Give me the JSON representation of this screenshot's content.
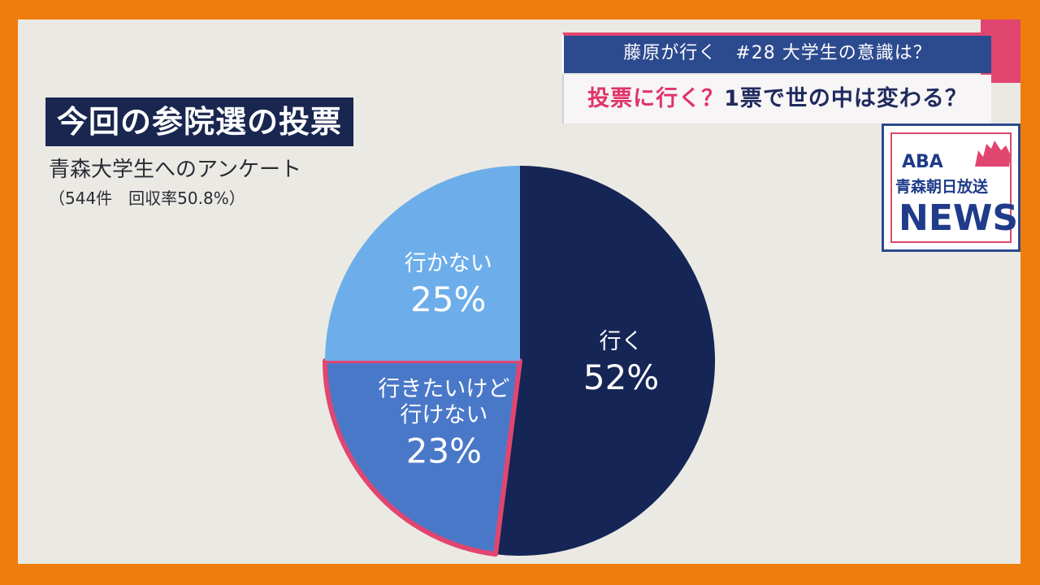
{
  "title": "今回の参院選の投票",
  "subtitle": "青森大学生へのアンケート",
  "note": "（544件　回収率50.8%）",
  "caption": {
    "line1": "藤原が行く　#28 大学生の意識は？",
    "line2_accent": "投票に行く？",
    "line2_rest": "1票で世の中は変わる？"
  },
  "logo": {
    "abbr": "ABA",
    "station": "青森朝日放送",
    "news": "NEWS"
  },
  "colors": {
    "frame": "#ef7d0d",
    "background": "#ebe9e3",
    "highlight": "#e0466f"
  },
  "chart_data": {
    "type": "pie",
    "title": "今回の参院選の投票",
    "slices": [
      {
        "label": "行く",
        "value": 52,
        "display": "52%",
        "color": "#152555"
      },
      {
        "label": "行きたいけど行けない",
        "label_lines": [
          "行きたいけど",
          "行けない"
        ],
        "value": 23,
        "display": "23%",
        "color": "#4a78c9",
        "highlighted": true
      },
      {
        "label": "行かない",
        "value": 25,
        "display": "25%",
        "color": "#6daeea"
      }
    ],
    "legend": "none"
  }
}
